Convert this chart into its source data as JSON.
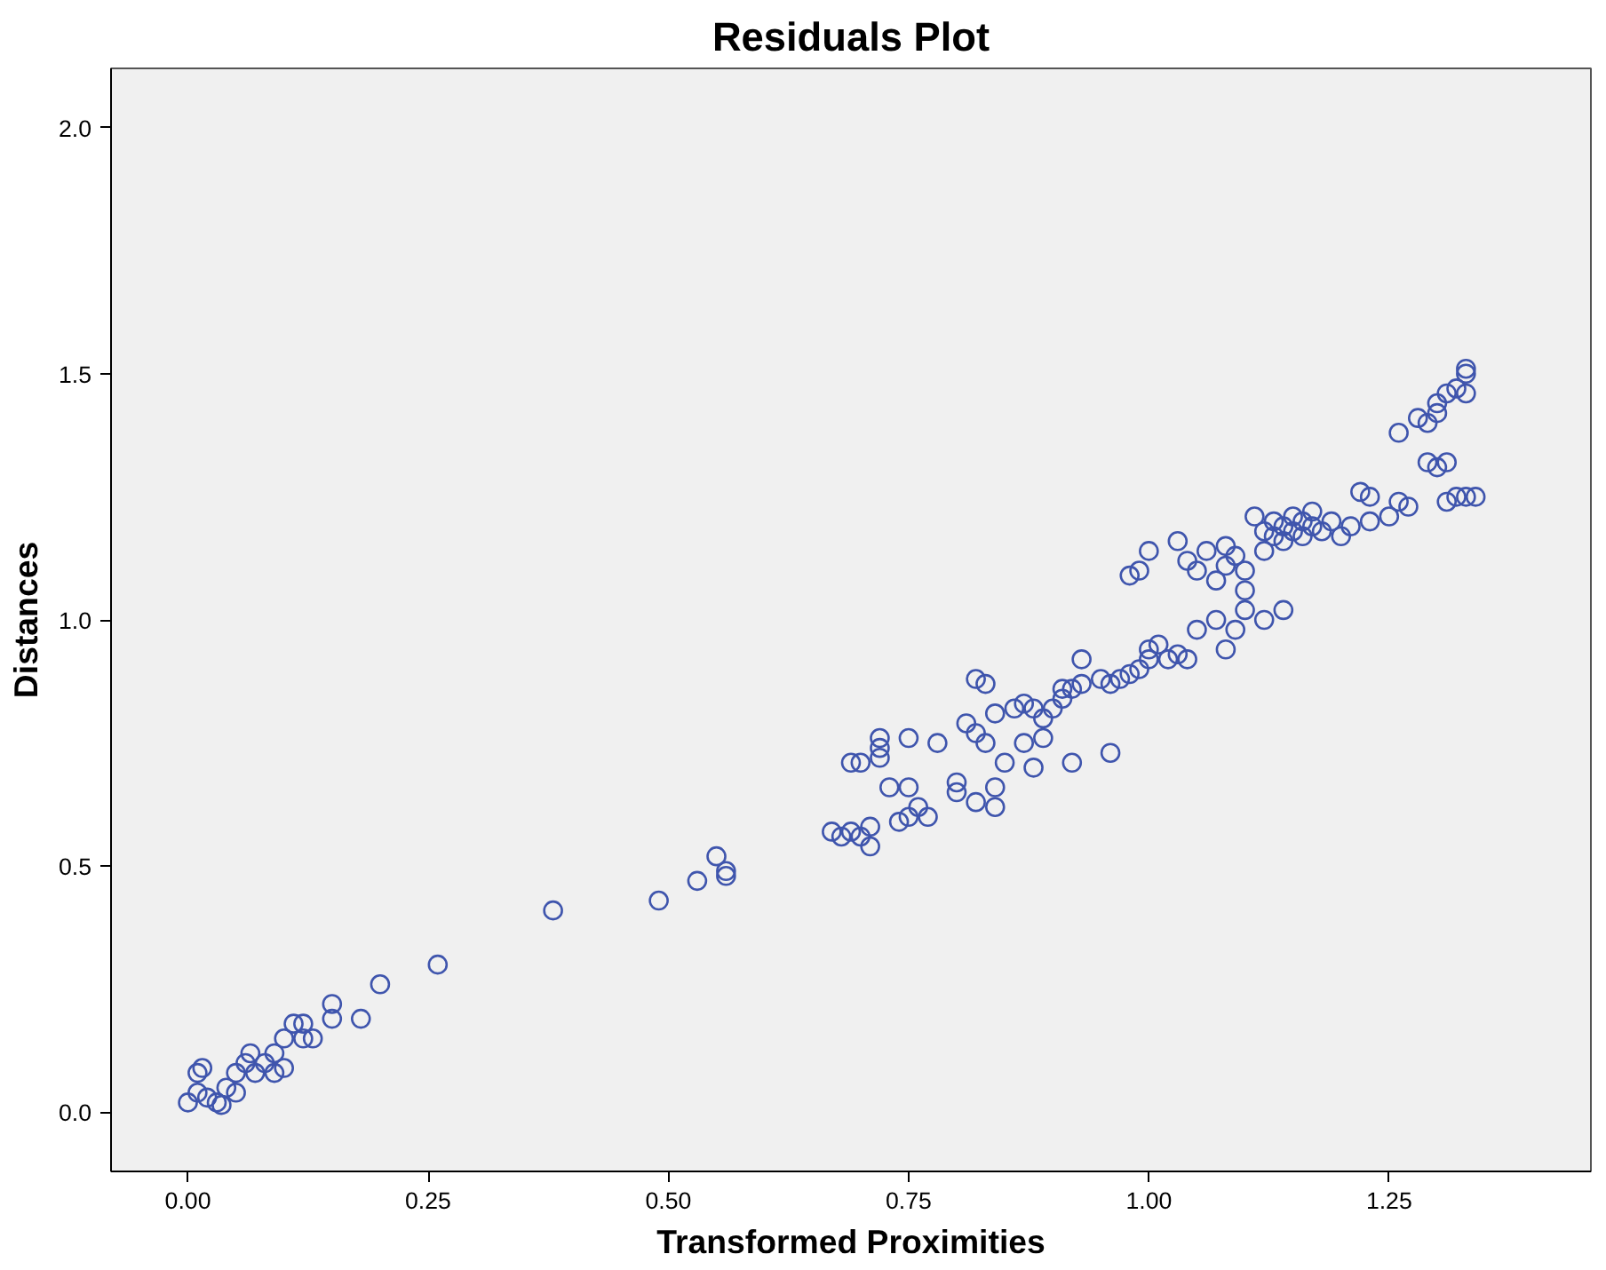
{
  "chart_data": {
    "type": "scatter",
    "title": "Residuals Plot",
    "xlabel": "Transformed Proximities",
    "ylabel": "Distances",
    "marker": "circle",
    "xlim": [
      -0.08,
      1.46
    ],
    "ylim": [
      -0.12,
      2.12
    ],
    "xticks": [
      {
        "value": 0,
        "label": "0.00"
      },
      {
        "value": 0.25,
        "label": "0.25"
      },
      {
        "value": 0.5,
        "label": "0.50"
      },
      {
        "value": 0.75,
        "label": "0.75"
      },
      {
        "value": 1,
        "label": "1.00"
      },
      {
        "value": 1.25,
        "label": "1.25"
      }
    ],
    "yticks": [
      {
        "value": 0,
        "label": "0.0"
      },
      {
        "value": 0.5,
        "label": "0.5"
      },
      {
        "value": 1,
        "label": "1.0"
      },
      {
        "value": 1.5,
        "label": "1.5"
      },
      {
        "value": 2,
        "label": "2.0"
      }
    ],
    "series": [
      {
        "color": "#3f55ad",
        "x": [
          0.0,
          0.01,
          0.015,
          0.01,
          0.02,
          0.03,
          0.035,
          0.04,
          0.05,
          0.05,
          0.06,
          0.065,
          0.07,
          0.08,
          0.09,
          0.09,
          0.1,
          0.1,
          0.11,
          0.12,
          0.12,
          0.13,
          0.15,
          0.15,
          0.18,
          0.2,
          0.26,
          0.38,
          0.49,
          0.53,
          0.55,
          0.56,
          0.56,
          0.67,
          0.68,
          0.69,
          0.69,
          0.7,
          0.7,
          0.71,
          0.71,
          0.72,
          0.72,
          0.72,
          0.73,
          0.74,
          0.75,
          0.75,
          0.75,
          0.76,
          0.77,
          0.78,
          0.8,
          0.8,
          0.81,
          0.82,
          0.82,
          0.82,
          0.83,
          0.83,
          0.84,
          0.84,
          0.84,
          0.85,
          0.86,
          0.87,
          0.87,
          0.88,
          0.88,
          0.89,
          0.89,
          0.9,
          0.91,
          0.91,
          0.92,
          0.92,
          0.93,
          0.93,
          0.95,
          0.96,
          0.96,
          0.97,
          0.98,
          0.99,
          1.0,
          1.0,
          1.01,
          1.02,
          1.03,
          1.04,
          1.05,
          1.07,
          1.08,
          1.09,
          1.1,
          1.12,
          1.14,
          0.98,
          0.99,
          1.0,
          1.03,
          1.04,
          1.05,
          1.06,
          1.07,
          1.08,
          1.08,
          1.09,
          1.1,
          1.1,
          1.11,
          1.12,
          1.12,
          1.13,
          1.13,
          1.14,
          1.14,
          1.15,
          1.15,
          1.16,
          1.16,
          1.17,
          1.17,
          1.18,
          1.19,
          1.2,
          1.21,
          1.22,
          1.23,
          1.23,
          1.25,
          1.26,
          1.26,
          1.27,
          1.28,
          1.29,
          1.29,
          1.3,
          1.3,
          1.31,
          1.31,
          1.32,
          1.32,
          1.33,
          1.33,
          1.33,
          1.31,
          1.33,
          1.34,
          1.3
        ],
        "values": [
          0.02,
          0.08,
          0.09,
          0.04,
          0.03,
          0.02,
          0.015,
          0.05,
          0.04,
          0.08,
          0.1,
          0.12,
          0.08,
          0.1,
          0.12,
          0.08,
          0.09,
          0.15,
          0.18,
          0.18,
          0.15,
          0.15,
          0.19,
          0.22,
          0.19,
          0.26,
          0.3,
          0.41,
          0.43,
          0.47,
          0.52,
          0.49,
          0.48,
          0.57,
          0.56,
          0.57,
          0.71,
          0.71,
          0.56,
          0.54,
          0.58,
          0.76,
          0.74,
          0.72,
          0.66,
          0.59,
          0.6,
          0.66,
          0.76,
          0.62,
          0.6,
          0.75,
          0.65,
          0.67,
          0.79,
          0.88,
          0.63,
          0.77,
          0.75,
          0.87,
          0.62,
          0.66,
          0.81,
          0.71,
          0.82,
          0.75,
          0.83,
          0.7,
          0.82,
          0.76,
          0.8,
          0.82,
          0.84,
          0.86,
          0.86,
          0.71,
          0.87,
          0.92,
          0.88,
          0.87,
          0.73,
          0.88,
          0.89,
          0.9,
          0.92,
          0.94,
          0.95,
          0.92,
          0.93,
          0.92,
          0.98,
          1.0,
          0.94,
          0.98,
          1.02,
          1.0,
          1.02,
          1.09,
          1.1,
          1.14,
          1.16,
          1.12,
          1.1,
          1.14,
          1.08,
          1.15,
          1.11,
          1.13,
          1.1,
          1.06,
          1.21,
          1.14,
          1.18,
          1.17,
          1.2,
          1.19,
          1.16,
          1.21,
          1.18,
          1.2,
          1.17,
          1.19,
          1.22,
          1.18,
          1.2,
          1.17,
          1.19,
          1.26,
          1.25,
          1.2,
          1.21,
          1.24,
          1.38,
          1.23,
          1.41,
          1.4,
          1.32,
          1.44,
          1.42,
          1.46,
          1.32,
          1.47,
          1.25,
          1.5,
          1.51,
          1.46,
          1.24,
          1.25,
          1.25,
          1.31
        ]
      }
    ]
  }
}
